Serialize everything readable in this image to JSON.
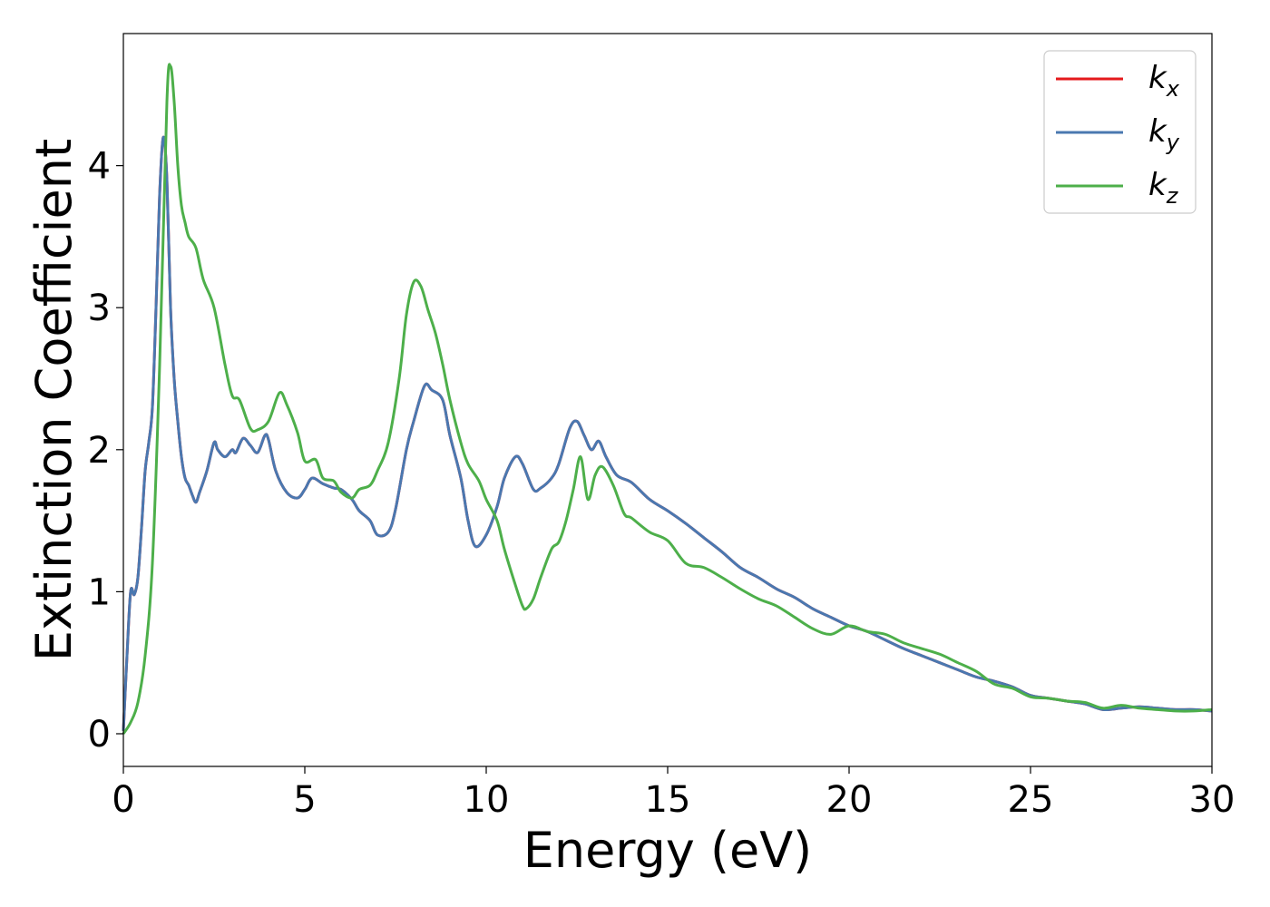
{
  "chart_data": {
    "type": "line",
    "title": "",
    "xlabel": "Energy (eV)",
    "ylabel": "Extinction Coefficient",
    "xlim": [
      0,
      30
    ],
    "ylim": [
      -0.23,
      4.93
    ],
    "xticks": [
      0,
      5,
      10,
      15,
      20,
      25,
      30
    ],
    "xtick_labels": [
      "0",
      "5",
      "10",
      "15",
      "20",
      "25",
      "30"
    ],
    "yticks": [
      0,
      1,
      2,
      3,
      4
    ],
    "ytick_labels": [
      "0",
      "1",
      "2",
      "3",
      "4"
    ],
    "grid": false,
    "legend_position": "top-right",
    "series": [
      {
        "name": "k",
        "subscript": "x",
        "color": "#e41a1c",
        "x": [
          0,
          0.1,
          0.2,
          0.3,
          0.4,
          0.5,
          0.6,
          0.7,
          0.8,
          0.9,
          1.0,
          1.1,
          1.2,
          1.3,
          1.4,
          1.5,
          1.6,
          1.7,
          1.8,
          1.9,
          2.0,
          2.1,
          2.3,
          2.5,
          2.6,
          2.8,
          3.0,
          3.1,
          3.3,
          3.5,
          3.7,
          3.9,
          4.0,
          4.2,
          4.5,
          4.8,
          5.0,
          5.2,
          5.5,
          5.8,
          6.0,
          6.3,
          6.5,
          6.8,
          7.0,
          7.3,
          7.5,
          7.8,
          8.0,
          8.3,
          8.5,
          8.8,
          9.0,
          9.3,
          9.5,
          9.7,
          10.0,
          10.3,
          10.5,
          10.8,
          11.0,
          11.3,
          11.5,
          11.8,
          12.0,
          12.3,
          12.5,
          12.7,
          12.9,
          13.1,
          13.3,
          13.6,
          14.0,
          14.5,
          15.0,
          15.5,
          16.0,
          16.5,
          17.0,
          17.5,
          18.0,
          18.5,
          19.0,
          19.5,
          20.0,
          20.5,
          21.0,
          21.5,
          22.0,
          22.5,
          23.0,
          23.5,
          24.0,
          24.5,
          25.0,
          25.5,
          26.0,
          26.5,
          27.0,
          27.5,
          28.0,
          28.5,
          29.0,
          29.5,
          30.0
        ],
        "y": [
          0.02,
          0.55,
          1.0,
          0.98,
          1.1,
          1.45,
          1.85,
          2.05,
          2.3,
          3.0,
          3.8,
          4.2,
          3.9,
          3.0,
          2.5,
          2.2,
          1.95,
          1.8,
          1.75,
          1.68,
          1.63,
          1.7,
          1.85,
          2.05,
          2.0,
          1.95,
          2.0,
          1.98,
          2.08,
          2.03,
          1.98,
          2.1,
          2.07,
          1.85,
          1.7,
          1.66,
          1.72,
          1.8,
          1.76,
          1.73,
          1.72,
          1.65,
          1.57,
          1.5,
          1.4,
          1.42,
          1.58,
          2.0,
          2.2,
          2.45,
          2.42,
          2.35,
          2.1,
          1.8,
          1.5,
          1.32,
          1.4,
          1.6,
          1.8,
          1.95,
          1.9,
          1.72,
          1.73,
          1.8,
          1.9,
          2.15,
          2.2,
          2.1,
          2.0,
          2.06,
          1.95,
          1.82,
          1.77,
          1.65,
          1.57,
          1.48,
          1.38,
          1.28,
          1.17,
          1.1,
          1.02,
          0.96,
          0.88,
          0.82,
          0.76,
          0.72,
          0.66,
          0.6,
          0.55,
          0.5,
          0.45,
          0.4,
          0.37,
          0.33,
          0.27,
          0.25,
          0.23,
          0.21,
          0.17,
          0.18,
          0.19,
          0.18,
          0.17,
          0.17,
          0.16
        ]
      },
      {
        "name": "k",
        "subscript": "y",
        "color": "#4a78b0",
        "x": [
          0,
          0.1,
          0.2,
          0.3,
          0.4,
          0.5,
          0.6,
          0.7,
          0.8,
          0.9,
          1.0,
          1.1,
          1.2,
          1.3,
          1.4,
          1.5,
          1.6,
          1.7,
          1.8,
          1.9,
          2.0,
          2.1,
          2.3,
          2.5,
          2.6,
          2.8,
          3.0,
          3.1,
          3.3,
          3.5,
          3.7,
          3.9,
          4.0,
          4.2,
          4.5,
          4.8,
          5.0,
          5.2,
          5.5,
          5.8,
          6.0,
          6.3,
          6.5,
          6.8,
          7.0,
          7.3,
          7.5,
          7.8,
          8.0,
          8.3,
          8.5,
          8.8,
          9.0,
          9.3,
          9.5,
          9.7,
          10.0,
          10.3,
          10.5,
          10.8,
          11.0,
          11.3,
          11.5,
          11.8,
          12.0,
          12.3,
          12.5,
          12.7,
          12.9,
          13.1,
          13.3,
          13.6,
          14.0,
          14.5,
          15.0,
          15.5,
          16.0,
          16.5,
          17.0,
          17.5,
          18.0,
          18.5,
          19.0,
          19.5,
          20.0,
          20.5,
          21.0,
          21.5,
          22.0,
          22.5,
          23.0,
          23.5,
          24.0,
          24.5,
          25.0,
          25.5,
          26.0,
          26.5,
          27.0,
          27.5,
          28.0,
          28.5,
          29.0,
          29.5,
          30.0
        ],
        "y": [
          0.02,
          0.55,
          1.0,
          0.98,
          1.1,
          1.45,
          1.85,
          2.05,
          2.3,
          3.0,
          3.8,
          4.2,
          3.9,
          3.0,
          2.5,
          2.2,
          1.95,
          1.8,
          1.75,
          1.68,
          1.63,
          1.7,
          1.85,
          2.05,
          2.0,
          1.95,
          2.0,
          1.98,
          2.08,
          2.03,
          1.98,
          2.1,
          2.07,
          1.85,
          1.7,
          1.66,
          1.72,
          1.8,
          1.76,
          1.73,
          1.72,
          1.65,
          1.57,
          1.5,
          1.4,
          1.42,
          1.58,
          2.0,
          2.2,
          2.45,
          2.42,
          2.35,
          2.1,
          1.8,
          1.5,
          1.32,
          1.4,
          1.6,
          1.8,
          1.95,
          1.9,
          1.72,
          1.73,
          1.8,
          1.9,
          2.15,
          2.2,
          2.1,
          2.0,
          2.06,
          1.95,
          1.82,
          1.77,
          1.65,
          1.57,
          1.48,
          1.38,
          1.28,
          1.17,
          1.1,
          1.02,
          0.96,
          0.88,
          0.82,
          0.76,
          0.72,
          0.66,
          0.6,
          0.55,
          0.5,
          0.45,
          0.4,
          0.37,
          0.33,
          0.27,
          0.25,
          0.23,
          0.21,
          0.17,
          0.18,
          0.19,
          0.18,
          0.17,
          0.17,
          0.16
        ]
      },
      {
        "name": "k",
        "subscript": "z",
        "color": "#4daf4a",
        "x": [
          0,
          0.2,
          0.4,
          0.6,
          0.8,
          1.0,
          1.2,
          1.3,
          1.4,
          1.5,
          1.6,
          1.7,
          1.8,
          2.0,
          2.2,
          2.5,
          2.8,
          3.0,
          3.2,
          3.5,
          3.7,
          4.0,
          4.3,
          4.5,
          4.8,
          5.0,
          5.3,
          5.5,
          5.8,
          6.0,
          6.3,
          6.5,
          6.8,
          7.0,
          7.3,
          7.6,
          7.8,
          8.0,
          8.2,
          8.4,
          8.6,
          8.8,
          9.0,
          9.3,
          9.5,
          9.8,
          10.0,
          10.3,
          10.5,
          10.8,
          11.0,
          11.1,
          11.3,
          11.5,
          11.8,
          12.0,
          12.2,
          12.4,
          12.6,
          12.8,
          13.0,
          13.2,
          13.5,
          13.8,
          14.0,
          14.5,
          15.0,
          15.5,
          16.0,
          16.5,
          17.0,
          17.5,
          18.0,
          18.5,
          19.0,
          19.5,
          20.0,
          20.5,
          21.0,
          21.5,
          22.0,
          22.5,
          23.0,
          23.5,
          24.0,
          24.5,
          25.0,
          25.5,
          26.0,
          26.5,
          27.0,
          27.5,
          28.0,
          28.5,
          29.0,
          29.5,
          30.0
        ],
        "y": [
          0.0,
          0.08,
          0.22,
          0.55,
          1.2,
          2.6,
          4.45,
          4.7,
          4.45,
          4.0,
          3.72,
          3.6,
          3.5,
          3.42,
          3.2,
          3.0,
          2.6,
          2.38,
          2.35,
          2.15,
          2.14,
          2.2,
          2.4,
          2.32,
          2.12,
          1.92,
          1.93,
          1.8,
          1.78,
          1.7,
          1.66,
          1.72,
          1.75,
          1.85,
          2.05,
          2.5,
          2.95,
          3.18,
          3.15,
          2.98,
          2.82,
          2.6,
          2.35,
          2.05,
          1.9,
          1.78,
          1.65,
          1.5,
          1.3,
          1.05,
          0.9,
          0.88,
          0.95,
          1.1,
          1.3,
          1.35,
          1.5,
          1.72,
          1.95,
          1.65,
          1.82,
          1.88,
          1.75,
          1.55,
          1.52,
          1.42,
          1.36,
          1.2,
          1.17,
          1.1,
          1.02,
          0.95,
          0.9,
          0.82,
          0.74,
          0.7,
          0.76,
          0.72,
          0.7,
          0.64,
          0.6,
          0.56,
          0.5,
          0.44,
          0.35,
          0.32,
          0.26,
          0.25,
          0.23,
          0.22,
          0.18,
          0.2,
          0.18,
          0.17,
          0.16,
          0.16,
          0.17
        ]
      }
    ]
  }
}
